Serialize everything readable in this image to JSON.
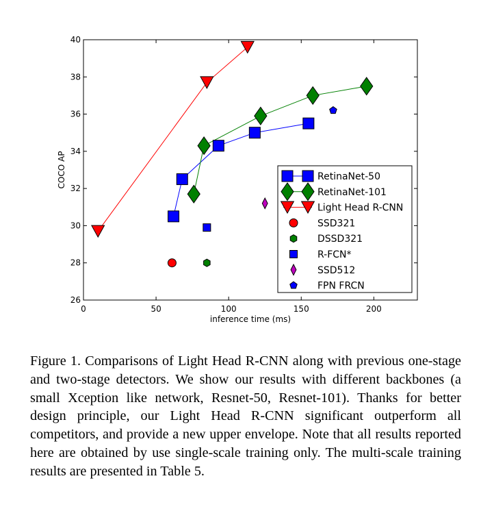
{
  "chart_data": {
    "type": "line",
    "xlabel": "inference time (ms)",
    "ylabel": "COCO AP",
    "xlim": [
      0,
      230
    ],
    "ylim": [
      26,
      40
    ],
    "xticks": [
      "0",
      "50",
      "100",
      "150",
      "200"
    ],
    "yticks": [
      "26",
      "28",
      "30",
      "32",
      "34",
      "36",
      "38",
      "40"
    ],
    "xtick_values": [
      0,
      50,
      100,
      150,
      200
    ],
    "ytick_values": [
      26,
      28,
      30,
      32,
      34,
      36,
      38,
      40
    ],
    "legend_position": "lower-right",
    "series": [
      {
        "name": "RetinaNet-50",
        "color": "#0000ff",
        "marker": "square",
        "line": true,
        "x": [
          62,
          68,
          93,
          118,
          155
        ],
        "y": [
          30.5,
          32.5,
          34.3,
          35.0,
          35.5
        ]
      },
      {
        "name": "RetinaNet-101",
        "color": "#008000",
        "marker": "diamond",
        "line": true,
        "x": [
          76,
          83,
          122,
          158,
          195
        ],
        "y": [
          31.7,
          34.3,
          35.9,
          37.0,
          37.5
        ]
      },
      {
        "name": "Light Head R-CNN",
        "color": "#ff0000",
        "marker": "triangle-down",
        "line": true,
        "x": [
          10,
          85,
          113
        ],
        "y": [
          29.7,
          37.7,
          39.6
        ]
      },
      {
        "name": "SSD321",
        "color": "#ff0000",
        "marker": "circle",
        "line": false,
        "x": [
          61
        ],
        "y": [
          28.0
        ]
      },
      {
        "name": "DSSD321",
        "color": "#008000",
        "marker": "hexagon",
        "line": false,
        "x": [
          85
        ],
        "y": [
          28.0
        ]
      },
      {
        "name": "R-FCN*",
        "color": "#0000ff",
        "marker": "square",
        "line": false,
        "x": [
          85
        ],
        "y": [
          29.9
        ]
      },
      {
        "name": "SSD512",
        "color": "#bf00bf",
        "marker": "thin-diamond",
        "line": false,
        "x": [
          125
        ],
        "y": [
          31.2
        ]
      },
      {
        "name": "FPN FRCN",
        "color": "#0000ff",
        "marker": "pentagon",
        "line": false,
        "x": [
          172
        ],
        "y": [
          36.2
        ]
      }
    ]
  },
  "caption": "Figure 1. Comparisons of Light Head R-CNN along with previous one-stage and two-stage detectors. We show our results with different backbones (a small Xception like network, Resnet-50, Resnet-101). Thanks for better design principle, our Light Head R-CNN significant outperform all competitors, and provide a new upper envelope. Note that all results reported here are obtained by use single-scale training only. The multi-scale training results are presented in Table 5."
}
